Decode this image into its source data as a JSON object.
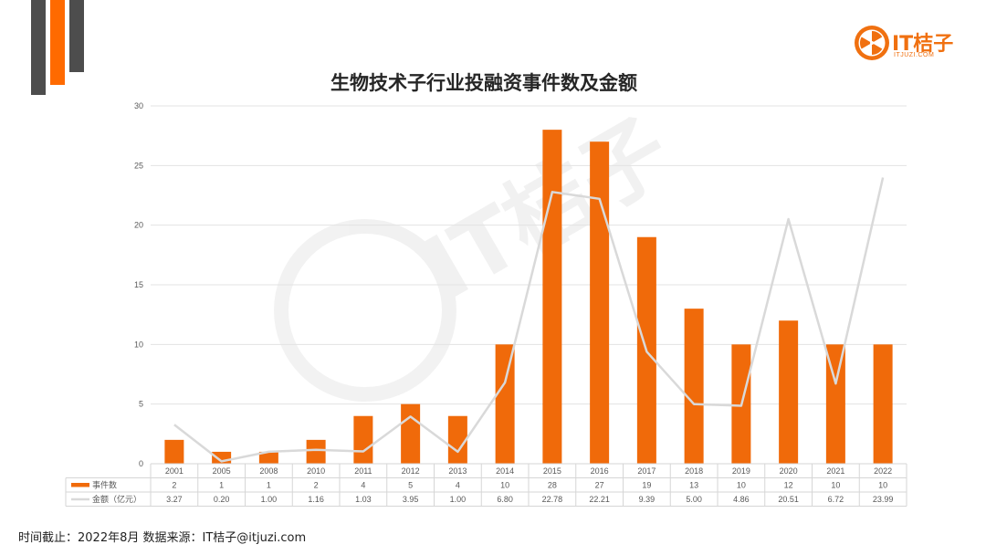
{
  "title": "生物技术子行业投融资事件数及金额",
  "logo": {
    "text": "IT桔子",
    "subtext": "ITJUZI.COM"
  },
  "footer": "时间截止：2022年8月  数据来源：IT桔子@itjuzi.com",
  "colors": {
    "bar": "#f06a0a",
    "line": "#d9d9d9",
    "dark": "#4d4d4d",
    "accent": "#ff6a00"
  },
  "chart_data": {
    "type": "bar",
    "title": "生物技术子行业投融资事件数及金额",
    "categories": [
      "2001",
      "2005",
      "2008",
      "2010",
      "2011",
      "2012",
      "2013",
      "2014",
      "2015",
      "2016",
      "2017",
      "2018",
      "2019",
      "2020",
      "2021",
      "2022"
    ],
    "series": [
      {
        "name": "事件数",
        "type": "bar",
        "values": [
          2,
          1,
          1,
          2,
          4,
          5,
          4,
          10,
          28,
          27,
          19,
          13,
          10,
          12,
          10,
          10
        ]
      },
      {
        "name": "金额（亿元）",
        "type": "line",
        "values": [
          3.27,
          0.2,
          1.0,
          1.16,
          1.03,
          3.95,
          1.0,
          6.8,
          22.78,
          22.21,
          9.39,
          5.0,
          4.86,
          20.51,
          6.72,
          23.99
        ]
      }
    ],
    "table_labels": [
      [
        "2",
        "1",
        "1",
        "2",
        "4",
        "5",
        "4",
        "10",
        "28",
        "27",
        "19",
        "13",
        "10",
        "12",
        "10",
        "10"
      ],
      [
        "3.27",
        "0.20",
        "1.00",
        "1.16",
        "1.03",
        "3.95",
        "1.00",
        "6.80",
        "22.78",
        "22.21",
        "9.39",
        "5.00",
        "4.86",
        "20.51",
        "6.72",
        "23.99"
      ]
    ],
    "yticks": [
      "0",
      "5",
      "10",
      "15",
      "20",
      "25",
      "30"
    ],
    "ylim": [
      0,
      30
    ],
    "grid": true,
    "data_table": true
  }
}
